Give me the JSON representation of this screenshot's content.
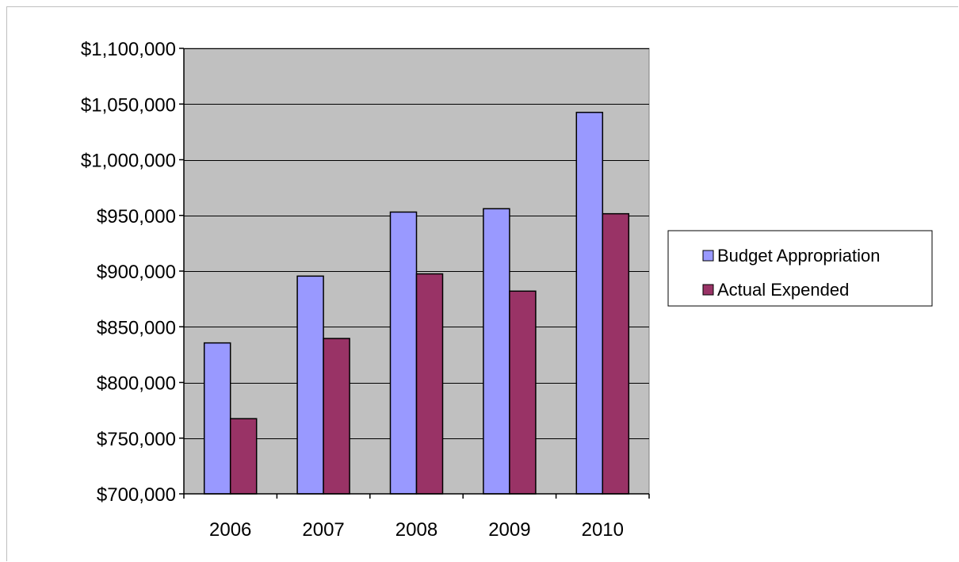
{
  "chart_data": {
    "type": "bar",
    "categories": [
      "2006",
      "2007",
      "2008",
      "2009",
      "2010"
    ],
    "series": [
      {
        "name": "Budget Appropriation",
        "color": "#9999ff",
        "values": [
          835500,
          895500,
          953000,
          956000,
          1042500
        ]
      },
      {
        "name": "Actual Expended",
        "color": "#993366",
        "values": [
          767500,
          839500,
          897500,
          882000,
          951500
        ]
      }
    ],
    "ylim": [
      700000,
      1100000
    ],
    "yticks": [
      700000,
      750000,
      800000,
      850000,
      900000,
      950000,
      1000000,
      1050000,
      1100000
    ],
    "ytick_labels": [
      "$700,000",
      "$750,000",
      "$800,000",
      "$850,000",
      "$900,000",
      "$950,000",
      "$1,000,000",
      "$1,050,000",
      "$1,100,000"
    ],
    "title": "",
    "xlabel": "",
    "ylabel": "",
    "grid": true,
    "plot_background": "#c0c0c0",
    "legend_position": "right"
  }
}
